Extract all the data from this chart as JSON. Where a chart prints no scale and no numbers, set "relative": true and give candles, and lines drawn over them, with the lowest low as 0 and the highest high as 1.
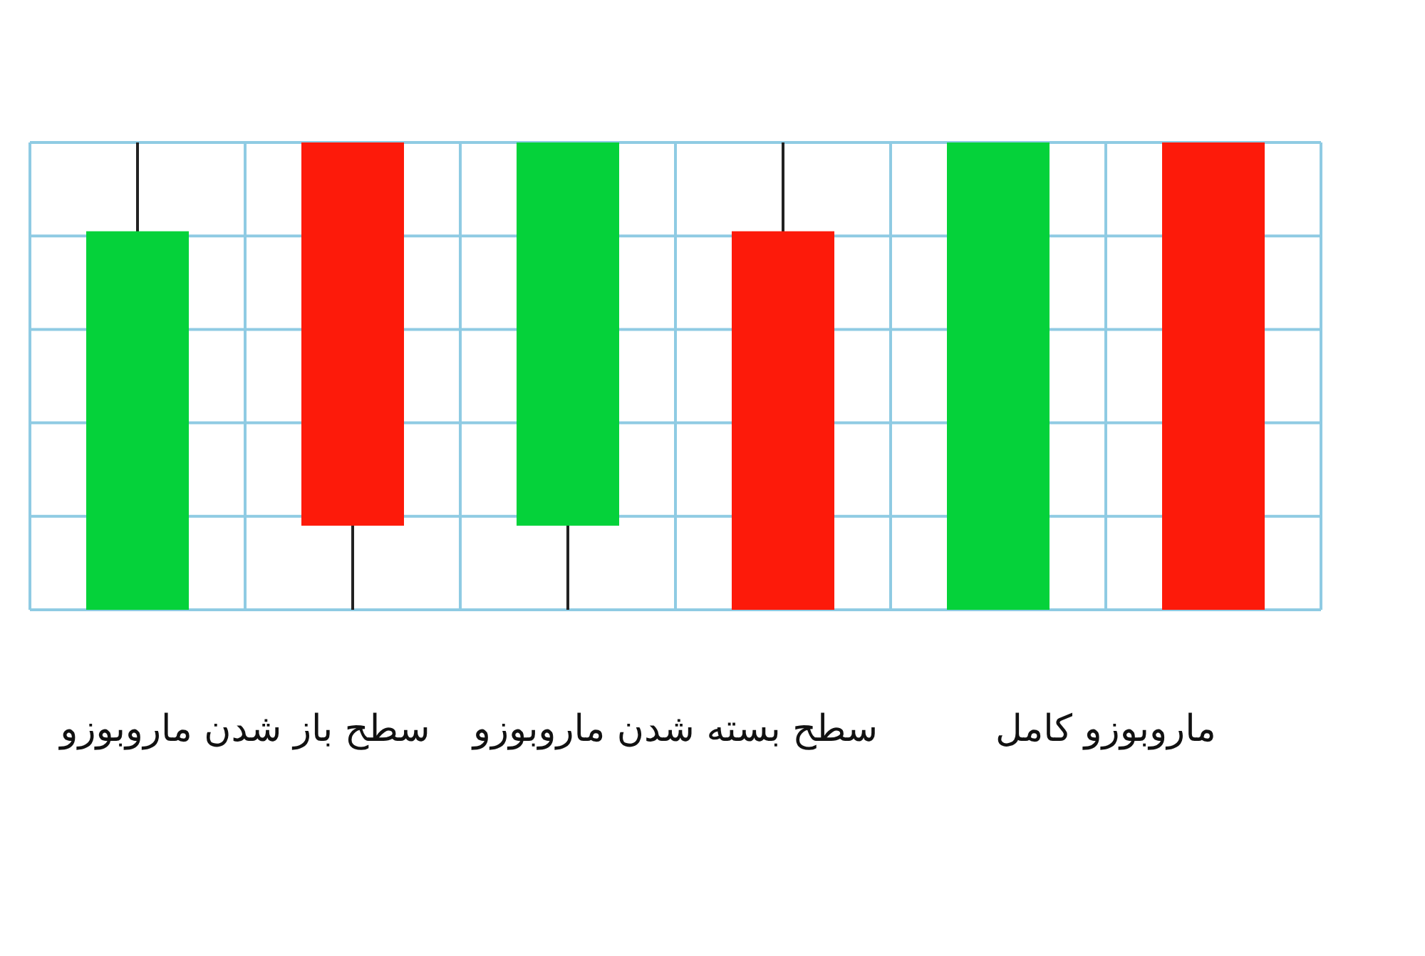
{
  "chart_data": {
    "type": "candlestick",
    "relative": true,
    "grid": true,
    "categories": [
      null,
      null,
      null,
      null,
      null,
      null
    ],
    "ohlc": [
      [
        0,
        1,
        0,
        0.81
      ],
      [
        1,
        1,
        0,
        0.18
      ],
      [
        0.18,
        1,
        0,
        1
      ],
      [
        0.81,
        1,
        0,
        0
      ],
      [
        0,
        1,
        0,
        1
      ],
      [
        1,
        1,
        0,
        0
      ]
    ],
    "colors": [
      "#05d23a",
      "#fd1a0a",
      "#05d23a",
      "#fd1a0a",
      "#05d23a",
      "#fd1a0a"
    ],
    "annotations": [
      "سطح باز شدن ماروبوزو",
      "سطح بسته شدن ماروبوزو",
      "ماروبوزو کامل"
    ]
  }
}
